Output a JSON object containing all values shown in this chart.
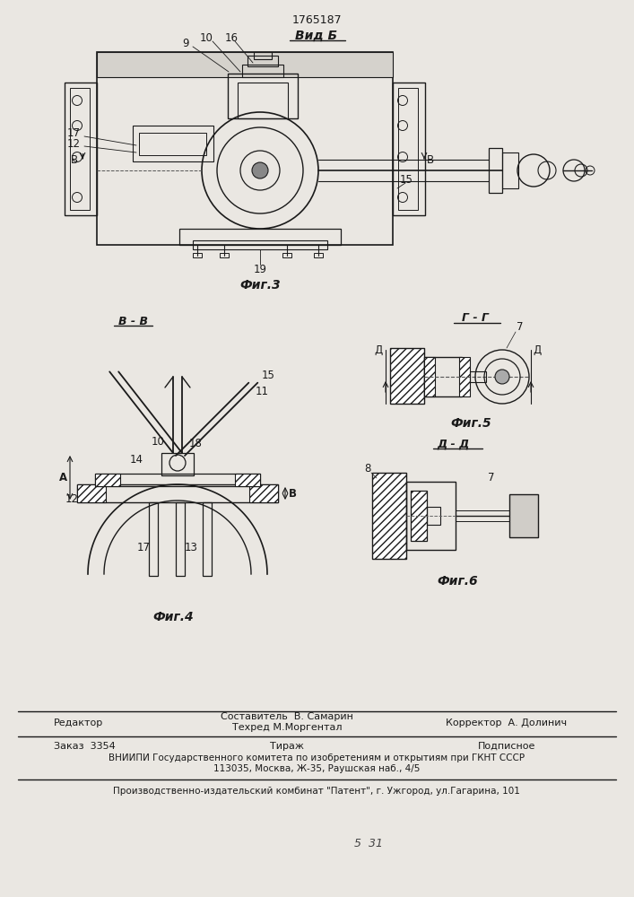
{
  "bg_color": "#eae7e2",
  "line_color": "#1a1a1a",
  "patent_number": "1765187",
  "view_label": "Вид Б",
  "fig3_label": "Фиг.3",
  "fig4_label": "Фиг.4",
  "fig5_label": "Фиг.5",
  "fig6_label": "Фиг.6",
  "section_gg": "Г - Г",
  "section_vv": "В - В",
  "section_dd": "Д - Д",
  "footer_editor": "Редактор",
  "footer_sostavitel": "Составитель  В. Самарин",
  "footer_tehred": "Техред М.Моргентал",
  "footer_korrektor": "Корректор  А. Долинич",
  "footer_zakaz": "Заказ  3354",
  "footer_tirazh": "Тираж",
  "footer_podpisnoe": "Подписное",
  "footer_vniipи": "ВНИИПИ Государственного комитета по изобретениям и открытиям при ГКНТ СССР",
  "footer_address": "113035, Москва, Ж-35, Раушская наб., 4/5",
  "footer_publisher": "Производственно-издательский комбинат \"Патент\", г. Ужгород, ул.Гагарина, 101"
}
